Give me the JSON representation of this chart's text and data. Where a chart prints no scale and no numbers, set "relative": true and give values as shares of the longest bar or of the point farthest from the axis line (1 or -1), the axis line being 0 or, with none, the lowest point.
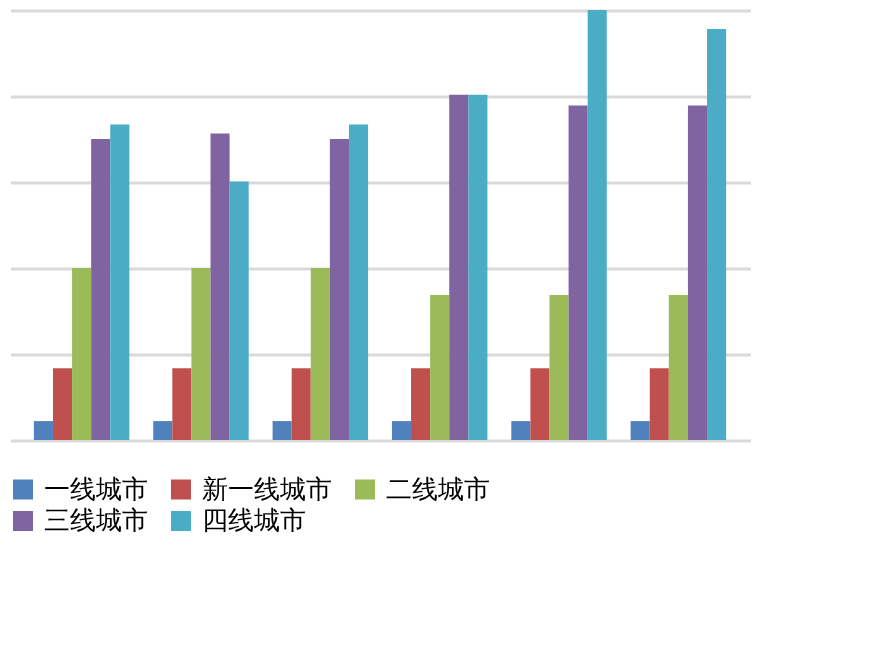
{
  "chart_data": {
    "type": "bar",
    "relative": true,
    "categories": [
      null,
      null,
      null,
      null,
      null,
      null
    ],
    "grid": "y",
    "legend": "bottom",
    "tick_labels": false,
    "series": [
      {
        "name": "一线城市",
        "color": "#4f81bd",
        "values": [
          0.044,
          0.044,
          0.044,
          0.044,
          0.044,
          0.044
        ]
      },
      {
        "name": "新一线城市",
        "color": "#c0504d",
        "values": [
          0.167,
          0.167,
          0.167,
          0.167,
          0.167,
          0.167
        ]
      },
      {
        "name": "二线城市",
        "color": "#9bbb59",
        "values": [
          0.4,
          0.4,
          0.4,
          0.337,
          0.337,
          0.337
        ]
      },
      {
        "name": "三线城市",
        "color": "#8064a2",
        "values": [
          0.7,
          0.713,
          0.7,
          0.803,
          0.778,
          0.778
        ]
      },
      {
        "name": "四线城市",
        "color": "#4bacc6",
        "values": [
          0.734,
          0.601,
          0.734,
          0.803,
          1,
          0.956
        ]
      }
    ]
  }
}
